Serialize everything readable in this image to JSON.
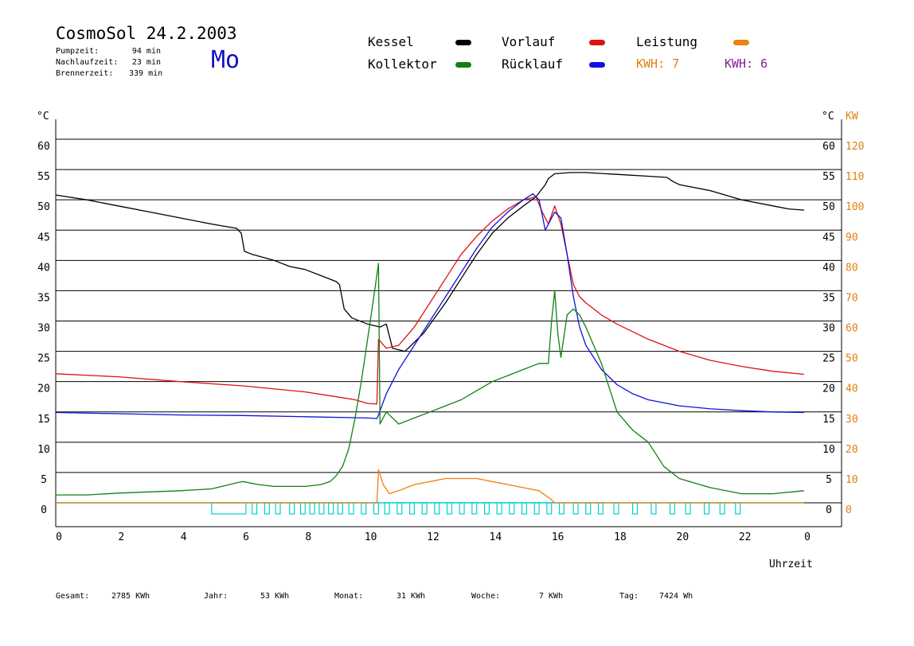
{
  "header": {
    "title": "CosmoSol 24.2.2003",
    "day": "Mo",
    "stats": [
      {
        "label": "Pumpzeit:",
        "value": "94 min"
      },
      {
        "label": "Nachlaufzeit:",
        "value": "23 min"
      },
      {
        "label": "Brennerzeit:",
        "value": "339 min"
      }
    ]
  },
  "legend": {
    "kessel": {
      "label": "Kessel",
      "color": "#000000"
    },
    "vorlauf": {
      "label": "Vorlauf",
      "color": "#e01010"
    },
    "leistung": {
      "label": "Leistung",
      "color": "#f08010"
    },
    "kollektor": {
      "label": "Kollektor",
      "color": "#108010"
    },
    "ruecklauf": {
      "label": "Rücklauf",
      "color": "#1010e0"
    },
    "kwh1": {
      "label": "KWH:",
      "value": "7",
      "color": "#e08010"
    },
    "kwh2": {
      "label": "KWH:",
      "value": "6",
      "color": "#802090"
    }
  },
  "footer": {
    "gesamt_label": "Gesamt:",
    "gesamt_value": "2785 KWh",
    "jahr_label": "Jahr:",
    "jahr_value": "53 KWh",
    "monat_label": "Monat:",
    "monat_value": "31 KWh",
    "woche_label": "Woche:",
    "woche_value": "7 KWh",
    "tag_label": "Tag:",
    "tag_value": "7424 Wh"
  },
  "chart_data": {
    "type": "line",
    "xlabel": "Uhrzeit",
    "ylabel_left": "°C",
    "ylabel_right_unit": "°C",
    "ylabel_right_kw": "KW",
    "xlim": [
      0,
      24
    ],
    "ylim": [
      0,
      60
    ],
    "ylim_kw": [
      0,
      120
    ],
    "x_ticks": [
      "0",
      "2",
      "4",
      "6",
      "8",
      "10",
      "12",
      "14",
      "16",
      "18",
      "20",
      "22",
      "0"
    ],
    "y_ticks": [
      "0",
      "5",
      "10",
      "15",
      "20",
      "25",
      "30",
      "35",
      "40",
      "45",
      "50",
      "55",
      "60"
    ],
    "kw_ticks": [
      "0",
      "10",
      "20",
      "30",
      "40",
      "50",
      "60",
      "70",
      "80",
      "90",
      "100",
      "110",
      "120"
    ],
    "grid": true,
    "series": [
      {
        "name": "Kessel",
        "color": "#000000",
        "points": [
          [
            0,
            50.8
          ],
          [
            1,
            50
          ],
          [
            2,
            49
          ],
          [
            3,
            48
          ],
          [
            4,
            47
          ],
          [
            5,
            46
          ],
          [
            5.8,
            45.3
          ],
          [
            5.95,
            44.5
          ],
          [
            6.05,
            41.5
          ],
          [
            6.3,
            41
          ],
          [
            7,
            40
          ],
          [
            7.5,
            39
          ],
          [
            8,
            38.5
          ],
          [
            8.5,
            37.5
          ],
          [
            9,
            36.5
          ],
          [
            9.1,
            36
          ],
          [
            9.25,
            32
          ],
          [
            9.5,
            30.5
          ],
          [
            10,
            29.5
          ],
          [
            10.4,
            29
          ],
          [
            10.6,
            29.5
          ],
          [
            10.8,
            25.5
          ],
          [
            11.2,
            25
          ],
          [
            11.8,
            28
          ],
          [
            12.5,
            33
          ],
          [
            13,
            37
          ],
          [
            13.5,
            41
          ],
          [
            14,
            44.5
          ],
          [
            14.5,
            47
          ],
          [
            15,
            49
          ],
          [
            15.4,
            50.5
          ],
          [
            15.7,
            52.5
          ],
          [
            15.8,
            53.5
          ],
          [
            16,
            54.3
          ],
          [
            16.5,
            54.5
          ],
          [
            17,
            54.5
          ],
          [
            18,
            54.2
          ],
          [
            19,
            53.9
          ],
          [
            19.6,
            53.7
          ],
          [
            19.8,
            53
          ],
          [
            20,
            52.5
          ],
          [
            21,
            51.5
          ],
          [
            22,
            50
          ],
          [
            23,
            49
          ],
          [
            23.5,
            48.5
          ],
          [
            24,
            48.3
          ]
        ]
      },
      {
        "name": "Vorlauf",
        "color": "#e01010",
        "points": [
          [
            0,
            21.3
          ],
          [
            2,
            20.8
          ],
          [
            4,
            20
          ],
          [
            6,
            19.3
          ],
          [
            8,
            18.3
          ],
          [
            9,
            17.5
          ],
          [
            9.6,
            17
          ],
          [
            10,
            16.4
          ],
          [
            10.3,
            16.3
          ],
          [
            10.35,
            27
          ],
          [
            10.6,
            25.5
          ],
          [
            11,
            26
          ],
          [
            11.5,
            29
          ],
          [
            12,
            33
          ],
          [
            12.5,
            37
          ],
          [
            13,
            41
          ],
          [
            13.5,
            44
          ],
          [
            14,
            46.5
          ],
          [
            14.5,
            48.5
          ],
          [
            15,
            50
          ],
          [
            15.4,
            50.5
          ],
          [
            15.6,
            48
          ],
          [
            15.8,
            46
          ],
          [
            16,
            49
          ],
          [
            16.2,
            46
          ],
          [
            16.4,
            41
          ],
          [
            16.6,
            36
          ],
          [
            16.8,
            34
          ],
          [
            17,
            33
          ],
          [
            17.5,
            31
          ],
          [
            18,
            29.5
          ],
          [
            19,
            27
          ],
          [
            20,
            25
          ],
          [
            21,
            23.5
          ],
          [
            22,
            22.5
          ],
          [
            23,
            21.7
          ],
          [
            24,
            21.2
          ]
        ]
      },
      {
        "name": "Rücklauf",
        "color": "#1010e0",
        "points": [
          [
            0,
            14.9
          ],
          [
            2,
            14.7
          ],
          [
            4,
            14.5
          ],
          [
            6,
            14.4
          ],
          [
            8,
            14.2
          ],
          [
            10,
            14
          ],
          [
            10.3,
            13.9
          ],
          [
            10.35,
            14.5
          ],
          [
            10.6,
            18
          ],
          [
            11,
            22
          ],
          [
            11.5,
            26
          ],
          [
            12,
            30
          ],
          [
            12.5,
            34
          ],
          [
            13,
            38
          ],
          [
            13.5,
            42
          ],
          [
            14,
            45.5
          ],
          [
            14.5,
            48
          ],
          [
            15,
            50
          ],
          [
            15.3,
            51
          ],
          [
            15.5,
            50
          ],
          [
            15.7,
            45
          ],
          [
            16,
            48
          ],
          [
            16.2,
            47
          ],
          [
            16.4,
            41
          ],
          [
            16.6,
            34
          ],
          [
            16.8,
            29
          ],
          [
            17,
            26
          ],
          [
            17.5,
            22
          ],
          [
            18,
            19.5
          ],
          [
            18.5,
            18
          ],
          [
            19,
            17
          ],
          [
            20,
            16
          ],
          [
            21,
            15.5
          ],
          [
            22,
            15.2
          ],
          [
            23,
            15
          ],
          [
            24,
            14.9
          ]
        ]
      },
      {
        "name": "Kollektor",
        "color": "#108010",
        "points": [
          [
            0,
            1.3
          ],
          [
            1,
            1.3
          ],
          [
            2,
            1.6
          ],
          [
            3,
            1.8
          ],
          [
            4,
            2
          ],
          [
            5,
            2.3
          ],
          [
            5.8,
            3.3
          ],
          [
            6,
            3.5
          ],
          [
            6.5,
            3
          ],
          [
            7,
            2.7
          ],
          [
            8,
            2.7
          ],
          [
            8.5,
            3
          ],
          [
            8.8,
            3.5
          ],
          [
            9,
            4.5
          ],
          [
            9.2,
            6
          ],
          [
            9.4,
            9
          ],
          [
            9.6,
            14
          ],
          [
            9.8,
            20
          ],
          [
            10,
            27
          ],
          [
            10.2,
            34
          ],
          [
            10.35,
            39.5
          ],
          [
            10.4,
            13
          ],
          [
            10.6,
            15
          ],
          [
            11,
            13
          ],
          [
            11.5,
            14
          ],
          [
            12,
            15
          ],
          [
            12.5,
            16
          ],
          [
            13,
            17
          ],
          [
            13.5,
            18.5
          ],
          [
            14,
            20
          ],
          [
            14.5,
            21
          ],
          [
            15,
            22
          ],
          [
            15.5,
            23
          ],
          [
            15.8,
            23
          ],
          [
            15.9,
            30
          ],
          [
            16,
            35
          ],
          [
            16.1,
            28
          ],
          [
            16.2,
            24
          ],
          [
            16.4,
            31
          ],
          [
            16.6,
            32
          ],
          [
            16.8,
            31
          ],
          [
            17,
            29
          ],
          [
            17.5,
            23
          ],
          [
            18,
            15
          ],
          [
            18.5,
            12
          ],
          [
            19,
            10
          ],
          [
            19.5,
            6
          ],
          [
            20,
            4
          ],
          [
            21,
            2.5
          ],
          [
            22,
            1.5
          ],
          [
            23,
            1.5
          ],
          [
            24,
            2
          ]
        ]
      },
      {
        "name": "Leistung",
        "color": "#f08010",
        "unit": "KW",
        "points": [
          [
            0,
            0
          ],
          [
            10.3,
            0
          ],
          [
            10.35,
            11
          ],
          [
            10.5,
            6
          ],
          [
            10.7,
            3
          ],
          [
            11,
            4
          ],
          [
            11.5,
            6
          ],
          [
            12,
            7
          ],
          [
            12.5,
            8
          ],
          [
            13,
            8
          ],
          [
            13.5,
            8
          ],
          [
            14,
            7
          ],
          [
            14.5,
            6
          ],
          [
            15,
            5
          ],
          [
            15.5,
            4
          ],
          [
            15.9,
            1
          ],
          [
            16,
            0
          ],
          [
            24,
            0
          ]
        ]
      }
    ],
    "pump_on_intervals": [
      [
        5.0,
        6.1
      ],
      [
        6.3,
        6.45
      ],
      [
        6.7,
        6.85
      ],
      [
        7.05,
        7.2
      ],
      [
        7.5,
        7.65
      ],
      [
        7.85,
        8.0
      ],
      [
        8.15,
        8.3
      ],
      [
        8.45,
        8.6
      ],
      [
        8.75,
        8.9
      ],
      [
        9.05,
        9.2
      ],
      [
        9.4,
        9.55
      ],
      [
        9.8,
        9.95
      ],
      [
        10.2,
        10.35
      ],
      [
        10.55,
        10.7
      ],
      [
        10.95,
        11.1
      ],
      [
        11.35,
        11.5
      ],
      [
        11.75,
        11.9
      ],
      [
        12.15,
        12.3
      ],
      [
        12.55,
        12.7
      ],
      [
        12.95,
        13.1
      ],
      [
        13.35,
        13.5
      ],
      [
        13.75,
        13.9
      ],
      [
        14.15,
        14.3
      ],
      [
        14.55,
        14.7
      ],
      [
        14.95,
        15.1
      ],
      [
        15.35,
        15.5
      ],
      [
        15.75,
        15.9
      ],
      [
        16.15,
        16.3
      ],
      [
        16.6,
        16.75
      ],
      [
        17.0,
        17.15
      ],
      [
        17.4,
        17.55
      ],
      [
        17.9,
        18.05
      ],
      [
        18.5,
        18.65
      ],
      [
        19.1,
        19.25
      ],
      [
        19.7,
        19.85
      ],
      [
        20.2,
        20.35
      ],
      [
        20.8,
        20.95
      ],
      [
        21.3,
        21.45
      ],
      [
        21.8,
        21.95
      ]
    ],
    "pump_color": "#00d0d0"
  }
}
